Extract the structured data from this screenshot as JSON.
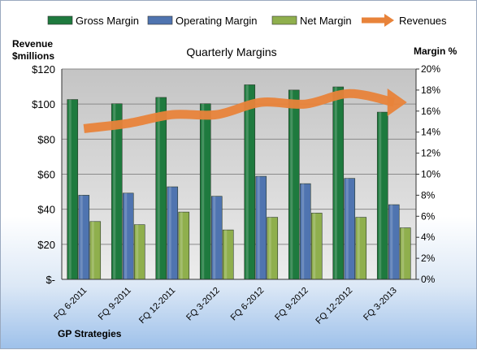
{
  "chart_data": {
    "type": "bar",
    "title": "Quarterly Margins",
    "footer": "GP Strategies",
    "left_axis_title_line1": "Revenue",
    "left_axis_title_line2": "$millions",
    "right_axis_title": "Margin %",
    "categories": [
      "FQ 6-2011",
      "FQ 9-2011",
      "FQ 12-2011",
      "FQ 3-2012",
      "FQ 6-2012",
      "FQ 9-2012",
      "FQ 12-2012",
      "FQ 3-2013"
    ],
    "left_ticks": [
      "$-",
      "$20",
      "$40",
      "$60",
      "$80",
      "$100",
      "$120"
    ],
    "right_ticks": [
      "0%",
      "2%",
      "4%",
      "6%",
      "8%",
      "10%",
      "12%",
      "14%",
      "16%",
      "18%",
      "20%"
    ],
    "ylim_left": [
      0,
      120
    ],
    "ylim_right": [
      0,
      20
    ],
    "grid": true,
    "legend_position": "top",
    "series": [
      {
        "name": "Gross Margin",
        "axis": "right",
        "color": "#1e7a3e",
        "values": [
          17.1,
          16.7,
          17.3,
          16.7,
          18.5,
          18.0,
          18.3,
          15.9
        ]
      },
      {
        "name": "Operating Margin",
        "axis": "right",
        "color": "#4f74b0",
        "values": [
          8.0,
          8.2,
          8.8,
          7.9,
          9.8,
          9.1,
          9.6,
          7.1
        ]
      },
      {
        "name": "Net Margin",
        "axis": "right",
        "color": "#8faf4d",
        "values": [
          5.5,
          5.2,
          6.4,
          4.7,
          5.9,
          6.3,
          5.9,
          4.9
        ]
      },
      {
        "name": "Revenues",
        "axis": "left",
        "type": "line",
        "color": "#e8833a",
        "values": [
          86,
          89,
          94,
          94,
          101,
          100,
          106,
          101
        ]
      }
    ]
  }
}
